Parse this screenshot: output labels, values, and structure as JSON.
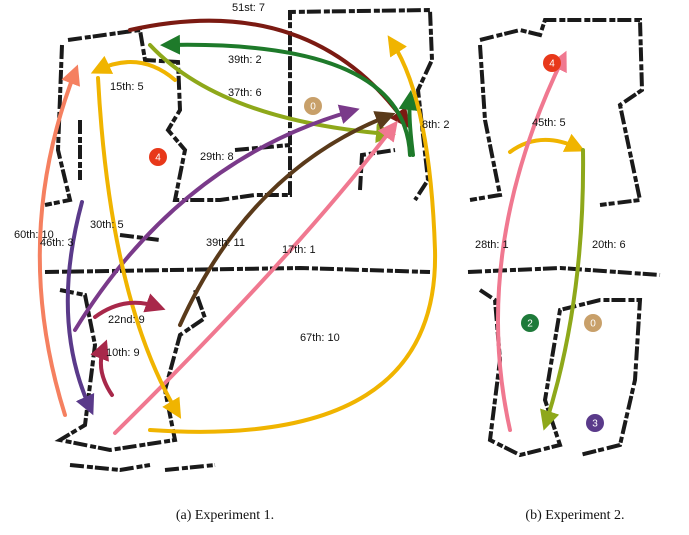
{
  "panels": [
    {
      "caption": "(a) Experiment 1.",
      "arrows": [
        "51st: 7",
        "39th: 2",
        "37th: 6",
        "15th: 5",
        "8th: 2",
        "29th: 8",
        "60th: 10",
        "30th: 5",
        "46th: 3",
        "39th: 11",
        "17th: 1",
        "22nd: 9",
        "10th: 9",
        "67th: 10"
      ],
      "markers": [
        "0",
        "4"
      ]
    },
    {
      "caption": "(b) Experiment 2.",
      "arrows": [
        "45th: 5",
        "28th: 1",
        "20th: 6"
      ],
      "markers": [
        "4",
        "2",
        "0",
        "3"
      ]
    }
  ]
}
